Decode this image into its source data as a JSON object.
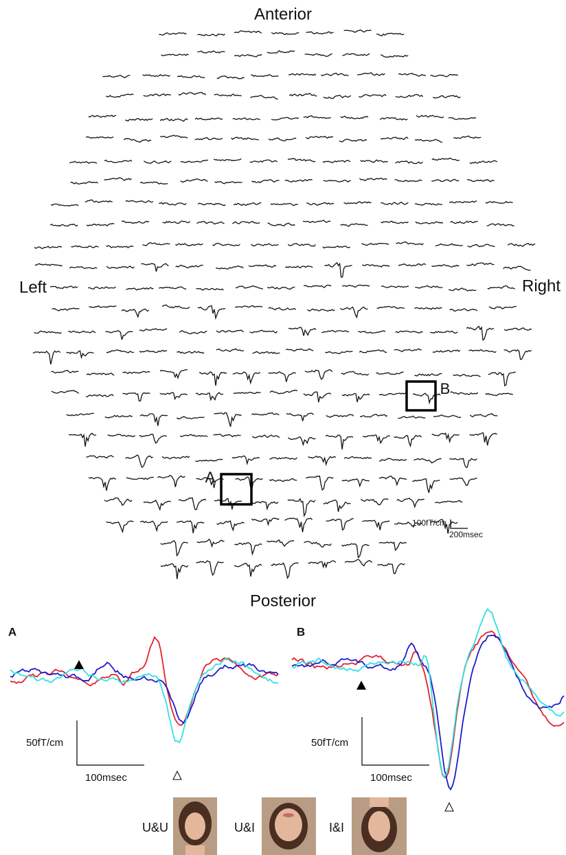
{
  "sensor_map": {
    "anterior": "Anterior",
    "posterior": "Posterior",
    "left": "Left",
    "right": "Right",
    "highlights": [
      "A",
      "B"
    ],
    "scale": {
      "amplitude": "100fT/cm",
      "time": "200msec"
    }
  },
  "panels": [
    {
      "label": "A",
      "amplitude": "50fT/cm",
      "time": "100msec"
    },
    {
      "label": "B",
      "amplitude": "50fT/cm",
      "time": "100msec"
    }
  ],
  "legend": [
    {
      "name": "U&U",
      "color": "#e3212b"
    },
    {
      "name": "U&I",
      "color": "#1c1ccc"
    },
    {
      "name": "I&I",
      "color": "#35dfe0"
    }
  ]
}
